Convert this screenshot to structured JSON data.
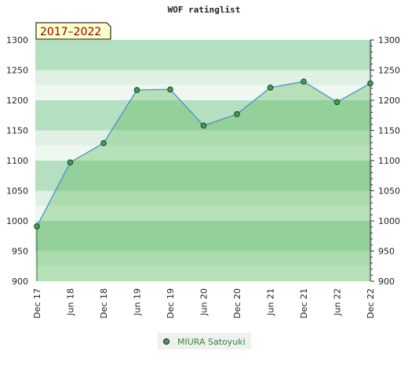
{
  "chart_data": {
    "type": "area",
    "title": "WOF ratinglist",
    "badge": "2017–2022",
    "series": [
      {
        "name": "MIURA Satoyuki",
        "values": [
          991,
          1097,
          1129,
          1217,
          1218,
          1158,
          1177,
          1221,
          1231,
          1197,
          1228
        ]
      }
    ],
    "categories": [
      "Dec 17",
      "Jun 18",
      "Dec 18",
      "Jun 19",
      "Dec 19",
      "Jun 20",
      "Dec 20",
      "Jun 21",
      "Dec 21",
      "Jun 22",
      "Dec 22"
    ],
    "ylim": [
      900,
      1300
    ],
    "yticks": [
      900,
      950,
      1000,
      1050,
      1100,
      1150,
      1200,
      1250,
      1300
    ],
    "grid": false,
    "legend": "bottom-center",
    "colors": {
      "line": "#4a90c8",
      "fill": "#5cb85c",
      "marker": "#3f9e55",
      "band_dark": "#b5dfc1",
      "band_light": "#dff0e4",
      "band_pale": "#eef8f0",
      "legend_bg": "#f0f0f0",
      "badge_bg": "#ffffcc"
    }
  }
}
